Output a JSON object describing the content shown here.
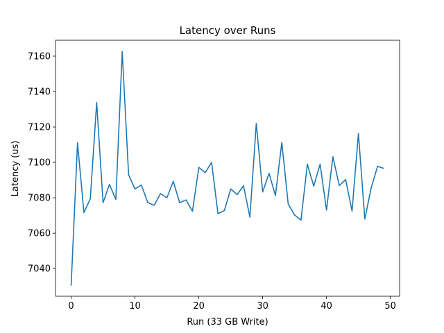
{
  "chart_data": {
    "type": "line",
    "title": "Latency over Runs",
    "xlabel": "Run (33 GB Write)",
    "ylabel": "Latency (us)",
    "xlim": [
      -2.45,
      51.45
    ],
    "ylim": [
      7024.4,
      7169
    ],
    "xticks": [
      0,
      10,
      20,
      30,
      40,
      50
    ],
    "yticks": [
      7040,
      7060,
      7080,
      7100,
      7120,
      7140,
      7160
    ],
    "grid": false,
    "line_color": "#1f77b4",
    "series": [
      {
        "x": [
          0,
          1,
          2,
          3,
          4,
          5,
          6,
          7,
          8,
          9,
          10,
          11,
          12,
          13,
          14,
          15,
          16,
          17,
          18,
          19,
          20,
          21,
          22,
          23,
          24,
          25,
          26,
          27,
          28,
          29,
          30,
          31,
          32,
          33,
          34,
          35,
          36,
          37,
          38,
          39,
          40,
          41,
          42,
          43,
          44,
          45,
          46,
          47,
          48,
          49
        ],
        "values": [
          7030.4,
          7111.1,
          7071.7,
          7079.4,
          7133.8,
          7077.2,
          7087.6,
          7079.1,
          7162.6,
          7093.0,
          7085.0,
          7087.2,
          7077.3,
          7075.8,
          7082.4,
          7080.0,
          7089.3,
          7077.2,
          7078.8,
          7072.4,
          7097.2,
          7094.2,
          7100.0,
          7071.0,
          7072.8,
          7085.0,
          7081.8,
          7086.8,
          7069.1,
          7122.0,
          7083.3,
          7093.8,
          7081.3,
          7111.3,
          7076.5,
          7070.3,
          7067.4,
          7099.0,
          7086.6,
          7099.0,
          7073.1,
          7103.2,
          7086.9,
          7090.3,
          7072.5,
          7116.3,
          7068.0,
          7085.6,
          7097.8,
          7096.6
        ]
      }
    ]
  }
}
